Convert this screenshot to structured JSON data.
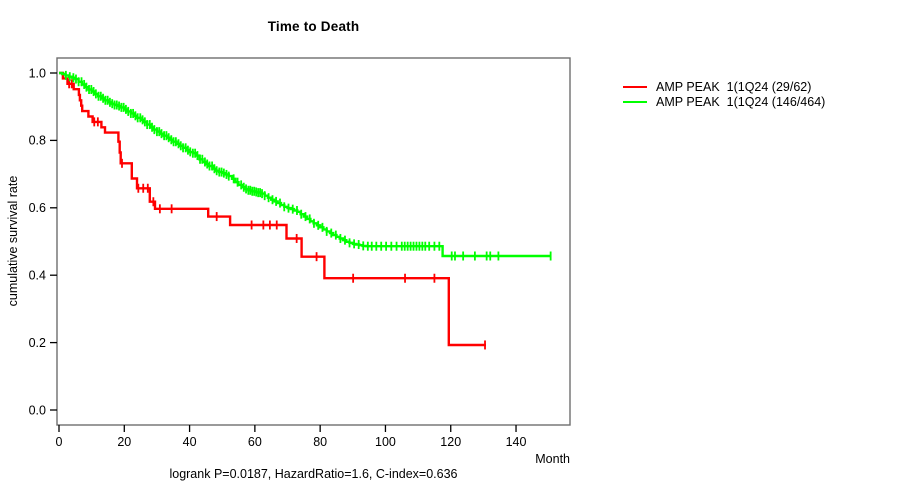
{
  "title": "Time to Death",
  "subtitle": "logrank P=0.0187, HazardRatio=1.6, C-index=0.636",
  "x_axis": {
    "label": "Month",
    "ticks": [
      0,
      20,
      40,
      60,
      80,
      100,
      120,
      140
    ]
  },
  "y_axis": {
    "label": "cumulative survival rate",
    "ticks": [
      "0.0",
      "0.2",
      "0.4",
      "0.6",
      "0.8",
      "1.0"
    ]
  },
  "legend": [
    {
      "label": "AMP PEAK  1(1Q24 (29/62)",
      "color": "#ff0000"
    },
    {
      "label": "AMP PEAK  1(1Q24 (146/464)",
      "color": "#00ff00"
    }
  ],
  "chart_data": {
    "type": "line",
    "subtype": "kaplan-meier-step",
    "title": "Time to Death",
    "xlabel": "Month",
    "ylabel": "cumulative survival rate",
    "xlim": [
      -0.6,
      156.5
    ],
    "ylim": [
      -0.045,
      1.045
    ],
    "grid": false,
    "legend_position": "right-outside",
    "annotation": "logrank P=0.0187, HazardRatio=1.6, C-index=0.636",
    "series": [
      {
        "name": "AMP PEAK  1(1Q24 (29/62)",
        "color": "#ff0000",
        "events_over_n": "29/62",
        "points": [
          [
            0,
            1.0
          ],
          [
            1.2,
            0.984
          ],
          [
            2.6,
            0.968
          ],
          [
            4.5,
            0.952
          ],
          [
            6.1,
            0.935
          ],
          [
            6.4,
            0.919
          ],
          [
            6.8,
            0.903
          ],
          [
            7.1,
            0.887
          ],
          [
            9.0,
            0.871
          ],
          [
            10.3,
            0.855
          ],
          [
            13.0,
            0.839
          ],
          [
            14.1,
            0.823
          ],
          [
            18.2,
            0.796
          ],
          [
            18.6,
            0.764
          ],
          [
            18.9,
            0.732
          ],
          [
            22.3,
            0.687
          ],
          [
            23.9,
            0.658
          ],
          [
            27.8,
            0.618
          ],
          [
            29.4,
            0.597
          ],
          [
            45.7,
            0.574
          ],
          [
            52.4,
            0.549
          ],
          [
            69.7,
            0.509
          ],
          [
            74.3,
            0.455
          ],
          [
            81.3,
            0.391
          ],
          [
            119.4,
            0.193
          ],
          [
            130.8,
            0.193
          ]
        ],
        "censor_months": [
          3.1,
          3.9,
          10.8,
          11.9,
          19.3,
          24.3,
          25.8,
          27.2,
          28.9,
          30.9,
          34.5,
          48.3,
          59.0,
          62.6,
          64.6,
          66.7,
          72.8,
          78.9,
          90.1,
          106.0,
          115.0,
          130.5
        ]
      },
      {
        "name": "AMP PEAK  1(1Q24 (146/464)",
        "color": "#00ff00",
        "events_over_n": "146/464",
        "points": [
          [
            0,
            1.0
          ],
          [
            1,
            0.997
          ],
          [
            2,
            0.993
          ],
          [
            3,
            0.989
          ],
          [
            4,
            0.986
          ],
          [
            5,
            0.982
          ],
          [
            6,
            0.974
          ],
          [
            7,
            0.966
          ],
          [
            8,
            0.958
          ],
          [
            9,
            0.951
          ],
          [
            10,
            0.945
          ],
          [
            11,
            0.938
          ],
          [
            12,
            0.931
          ],
          [
            13,
            0.925
          ],
          [
            14,
            0.919
          ],
          [
            15,
            0.913
          ],
          [
            16,
            0.909
          ],
          [
            17,
            0.905
          ],
          [
            18,
            0.902
          ],
          [
            19,
            0.898
          ],
          [
            20,
            0.892
          ],
          [
            21,
            0.886
          ],
          [
            22,
            0.88
          ],
          [
            23,
            0.873
          ],
          [
            24,
            0.867
          ],
          [
            25,
            0.861
          ],
          [
            26,
            0.855
          ],
          [
            27,
            0.847
          ],
          [
            28,
            0.839
          ],
          [
            29,
            0.832
          ],
          [
            30,
            0.826
          ],
          [
            31,
            0.82
          ],
          [
            32,
            0.814
          ],
          [
            33,
            0.808
          ],
          [
            34,
            0.802
          ],
          [
            35,
            0.796
          ],
          [
            36,
            0.79
          ],
          [
            37,
            0.784
          ],
          [
            38,
            0.778
          ],
          [
            39,
            0.771
          ],
          [
            40,
            0.766
          ],
          [
            41,
            0.762
          ],
          [
            42,
            0.755
          ],
          [
            43,
            0.744
          ],
          [
            44,
            0.736
          ],
          [
            45,
            0.73
          ],
          [
            46,
            0.724
          ],
          [
            47,
            0.716
          ],
          [
            48,
            0.71
          ],
          [
            49,
            0.706
          ],
          [
            50,
            0.703
          ],
          [
            51,
            0.699
          ],
          [
            52,
            0.694
          ],
          [
            53,
            0.686
          ],
          [
            54,
            0.676
          ],
          [
            55,
            0.668
          ],
          [
            56,
            0.661
          ],
          [
            57,
            0.656
          ],
          [
            58,
            0.652
          ],
          [
            59,
            0.649
          ],
          [
            60,
            0.647
          ],
          [
            61,
            0.645
          ],
          [
            62,
            0.642
          ],
          [
            63,
            0.636
          ],
          [
            64,
            0.63
          ],
          [
            65,
            0.624
          ],
          [
            66,
            0.619
          ],
          [
            67,
            0.614
          ],
          [
            68,
            0.608
          ],
          [
            69,
            0.603
          ],
          [
            70,
            0.599
          ],
          [
            71,
            0.596
          ],
          [
            72,
            0.592
          ],
          [
            73,
            0.588
          ],
          [
            74,
            0.581
          ],
          [
            75,
            0.574
          ],
          [
            76,
            0.567
          ],
          [
            77,
            0.56
          ],
          [
            78,
            0.554
          ],
          [
            79,
            0.548
          ],
          [
            80,
            0.542
          ],
          [
            81,
            0.536
          ],
          [
            82,
            0.53
          ],
          [
            83,
            0.525
          ],
          [
            84,
            0.519
          ],
          [
            85,
            0.514
          ],
          [
            86,
            0.509
          ],
          [
            87,
            0.504
          ],
          [
            88,
            0.499
          ],
          [
            89,
            0.496
          ],
          [
            90,
            0.493
          ],
          [
            91,
            0.491
          ],
          [
            92,
            0.489
          ],
          [
            93,
            0.487
          ],
          [
            94,
            0.486
          ],
          [
            117.5,
            0.457
          ],
          [
            150.6,
            0.457
          ]
        ],
        "censor_months": [
          2.1,
          3.3,
          4.4,
          5.2,
          6.0,
          6.9,
          7.7,
          8.4,
          9.2,
          9.9,
          10.6,
          11.3,
          12.1,
          12.8,
          13.5,
          14.2,
          14.9,
          15.6,
          16.3,
          17.0,
          17.7,
          18.4,
          19.1,
          19.8,
          20.5,
          21.2,
          22.0,
          22.7,
          23.4,
          24.1,
          24.9,
          25.6,
          26.3,
          27.0,
          27.8,
          28.5,
          29.2,
          30.0,
          30.7,
          31.4,
          32.2,
          32.9,
          33.6,
          34.4,
          35.1,
          35.8,
          36.6,
          37.3,
          38.0,
          38.8,
          39.5,
          40.2,
          41.0,
          41.7,
          42.4,
          43.2,
          43.9,
          44.7,
          45.4,
          46.1,
          46.9,
          47.6,
          48.3,
          49.1,
          49.8,
          50.5,
          51.3,
          52.0,
          53.5,
          54.7,
          55.8,
          56.6,
          57.3,
          58.0,
          58.6,
          59.2,
          59.8,
          60.4,
          61.0,
          61.6,
          62.2,
          63.0,
          64.2,
          65.4,
          66.5,
          67.7,
          69.0,
          70.3,
          71.6,
          72.9,
          74.2,
          75.5,
          76.8,
          78.1,
          79.4,
          80.7,
          82.0,
          83.4,
          84.8,
          86.2,
          87.6,
          89.0,
          90.4,
          91.8,
          93.2,
          94.6,
          95.8,
          97.2,
          98.7,
          100.2,
          101.8,
          103.4,
          105.0,
          105.9,
          106.8,
          107.7,
          108.6,
          109.5,
          110.4,
          111.3,
          112.2,
          113.4,
          115.0,
          116.5,
          120.3,
          121.3,
          123.8,
          127.4,
          131.0,
          132.1,
          134.6,
          150.6
        ]
      }
    ]
  }
}
